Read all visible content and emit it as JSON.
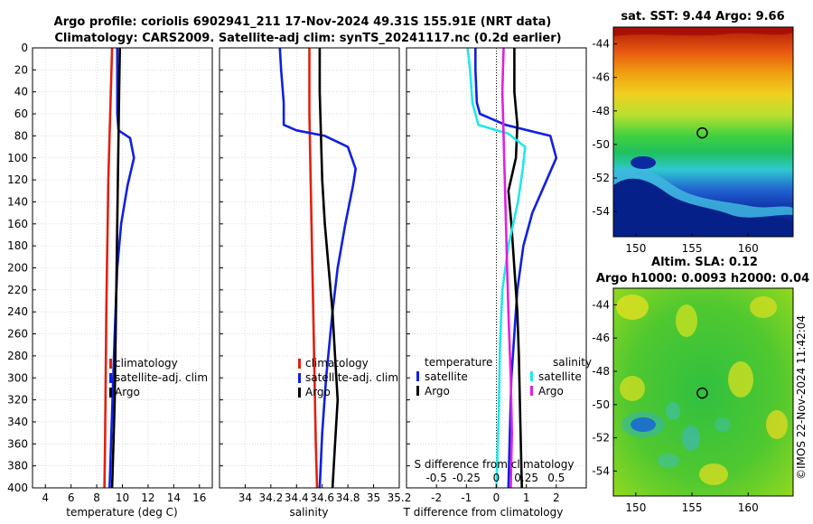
{
  "title_line1": "Argo profile: coriolis 6902941_211 17-Nov-2024 49.31S 155.91E (NRT data)",
  "title_line2": "Climatology: CARS2009. Satellite-adj clim: synTS_20241117.nc (0.2d earlier)",
  "timestamp": "©IMOS 22-Nov-2024 11:42:04",
  "colors": {
    "clim": "#e02010",
    "sat": "#1020e0",
    "argo": "#000000",
    "sat_s": "#20e8e8",
    "argo_s": "#e020e0"
  },
  "chart_data": [
    {
      "type": "line",
      "id": "temperature",
      "xlabel": "temperature (deg C)",
      "xlim": [
        3,
        17
      ],
      "xticks": [
        4,
        6,
        8,
        10,
        12,
        14,
        16
      ],
      "xtick_labels": [
        "4",
        "6",
        "8",
        "10",
        "12",
        "14",
        "16"
      ],
      "ylim": [
        0,
        400
      ],
      "yticks": [
        0,
        20,
        40,
        60,
        80,
        100,
        120,
        140,
        160,
        180,
        200,
        220,
        240,
        260,
        280,
        300,
        320,
        340,
        360,
        380,
        400
      ],
      "ytick_labels": [
        "0",
        "20",
        "40",
        "60",
        "80",
        "100",
        "120",
        "140",
        "160",
        "180",
        "200",
        "220",
        "240",
        "260",
        "280",
        "300",
        "320",
        "340",
        "360",
        "380",
        "400"
      ],
      "legend": [
        "climatology",
        "satellite-adj. clim",
        "Argo"
      ],
      "series": [
        {
          "name": "climatology",
          "color_key": "clim",
          "x": [
            9.2,
            9.1,
            9.0,
            8.9,
            8.85,
            8.8,
            8.75,
            8.7,
            8.65,
            8.6
          ],
          "y": [
            0,
            40,
            80,
            120,
            160,
            200,
            240,
            300,
            360,
            400
          ]
        },
        {
          "name": "satellite-adj. clim",
          "color_key": "sat",
          "x": [
            9.6,
            9.6,
            9.6,
            9.7,
            10.6,
            10.9,
            10.4,
            9.9,
            9.6,
            9.4,
            9.2,
            9.0
          ],
          "y": [
            0,
            20,
            60,
            75,
            82,
            100,
            125,
            160,
            200,
            260,
            330,
            400
          ]
        },
        {
          "name": "Argo",
          "color_key": "argo",
          "x": [
            9.8,
            9.75,
            9.7,
            9.65,
            9.6,
            9.55,
            9.5,
            9.45,
            9.4,
            9.3,
            9.2
          ],
          "y": [
            0,
            40,
            80,
            120,
            160,
            200,
            240,
            280,
            320,
            360,
            400
          ]
        }
      ]
    },
    {
      "type": "line",
      "id": "salinity",
      "xlabel": "salinity",
      "xlim": [
        33.8,
        35.2
      ],
      "xticks": [
        34,
        34.2,
        34.4,
        34.6,
        34.8,
        35,
        35.2
      ],
      "xtick_labels": [
        "34",
        "34.2",
        "34.4",
        "34.6",
        "34.8",
        "35",
        "35.2"
      ],
      "legend": [
        "climatology",
        "satellite-adj. clim",
        "Argo"
      ],
      "series": [
        {
          "name": "climatology",
          "color_key": "clim",
          "x": [
            34.5,
            34.5,
            34.51,
            34.52,
            34.53,
            34.54,
            34.55,
            34.56
          ],
          "y": [
            0,
            60,
            120,
            180,
            240,
            300,
            360,
            400
          ]
        },
        {
          "name": "satellite-adj. clim",
          "color_key": "sat",
          "x": [
            34.27,
            34.28,
            34.3,
            34.3,
            34.4,
            34.62,
            34.8,
            34.86,
            34.84,
            34.78,
            34.72,
            34.68,
            34.63,
            34.6,
            34.58
          ],
          "y": [
            0,
            20,
            50,
            70,
            75,
            80,
            90,
            110,
            125,
            160,
            200,
            240,
            300,
            350,
            400
          ]
        },
        {
          "name": "Argo",
          "color_key": "argo",
          "x": [
            34.58,
            34.58,
            34.59,
            34.6,
            34.62,
            34.65,
            34.68,
            34.7,
            34.72,
            34.7,
            34.68
          ],
          "y": [
            0,
            40,
            80,
            120,
            160,
            200,
            240,
            280,
            320,
            360,
            400
          ]
        }
      ]
    },
    {
      "type": "line",
      "id": "difference",
      "xlabel": "T difference from climatology",
      "xlabel_top": "S difference from climatology",
      "xlim": [
        -3,
        3
      ],
      "xticks": [
        -2,
        -1,
        0,
        1,
        2
      ],
      "xtick_labels": [
        "-2",
        "-1",
        "0",
        "1",
        "2"
      ],
      "s_ticks": [
        -0.5,
        -0.25,
        0,
        0.25,
        0.5
      ],
      "s_tick_labels": [
        "-0.5",
        "-0.25",
        "0",
        "0.25",
        "0.5"
      ],
      "legend_t_title": "temperature",
      "legend_s_title": "salinity",
      "legend": [
        "satellite",
        "Argo",
        "satellite",
        "Argo"
      ],
      "series": [
        {
          "name": "T satellite",
          "color_key": "sat",
          "x": [
            -0.7,
            -0.7,
            -0.65,
            -0.55,
            0.3,
            1.8,
            2.0,
            1.6,
            1.2,
            0.9,
            0.7,
            0.6,
            0.5,
            0.45,
            0.4
          ],
          "y": [
            0,
            20,
            50,
            60,
            70,
            80,
            100,
            125,
            150,
            180,
            220,
            260,
            300,
            350,
            400
          ]
        },
        {
          "name": "T Argo",
          "color_key": "argo",
          "x": [
            0.6,
            0.6,
            0.7,
            0.65,
            0.4,
            0.5,
            0.6,
            0.7,
            0.75,
            0.8,
            0.85
          ],
          "y": [
            0,
            40,
            70,
            100,
            130,
            160,
            200,
            240,
            280,
            340,
            400
          ]
        },
        {
          "name": "S satellite",
          "color_key": "sat_s",
          "x": [
            -0.24,
            -0.22,
            -0.2,
            -0.15,
            0.1,
            0.24,
            0.22,
            0.18,
            0.1,
            0.05,
            0.03,
            0.02,
            0.0
          ],
          "y": [
            0,
            20,
            50,
            70,
            78,
            90,
            110,
            140,
            180,
            220,
            270,
            330,
            400
          ]
        },
        {
          "name": "S Argo",
          "color_key": "argo_s",
          "x": [
            0.06,
            0.05,
            0.06,
            0.07,
            0.08,
            0.09,
            0.1,
            0.12,
            0.13,
            0.12
          ],
          "y": [
            0,
            40,
            80,
            120,
            160,
            200,
            240,
            300,
            350,
            400
          ]
        }
      ]
    },
    {
      "type": "heatmap",
      "id": "sst_map",
      "title": "sat. SST: 9.44 Argo: 9.66",
      "xlim": [
        148,
        164
      ],
      "ylim": [
        -55.5,
        -43
      ],
      "xticks": [
        150,
        155,
        160
      ],
      "xtick_labels": [
        "150",
        "155",
        "160"
      ],
      "yticks": [
        -44,
        -46,
        -48,
        -50,
        -52,
        -54
      ],
      "ytick_labels": [
        "-44",
        "-46",
        "-48",
        "-50",
        "-52",
        "-54"
      ],
      "marker": {
        "lon": 155.91,
        "lat": -49.31
      }
    },
    {
      "type": "heatmap",
      "id": "sla_map",
      "title": "Altim. SLA: 0.12",
      "subtitle": "Argo h1000: 0.0093 h2000: 0.04",
      "xlim": [
        148,
        164
      ],
      "ylim": [
        -55.5,
        -43
      ],
      "xticks": [
        150,
        155,
        160
      ],
      "xtick_labels": [
        "150",
        "155",
        "160"
      ],
      "yticks": [
        -44,
        -46,
        -48,
        -50,
        -52,
        -54
      ],
      "ytick_labels": [
        "-44",
        "-46",
        "-48",
        "-50",
        "-52",
        "-54"
      ],
      "marker": {
        "lon": 155.91,
        "lat": -49.31
      }
    }
  ]
}
